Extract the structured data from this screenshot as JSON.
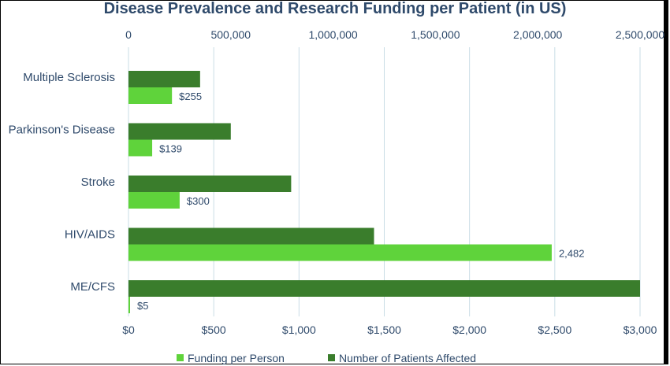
{
  "chart_data": {
    "type": "bar",
    "orientation": "horizontal",
    "title": "Disease Prevalence and Research Funding per Patient (in US)",
    "categories": [
      "Multiple Sclerosis",
      "Parkinson's Disease",
      "Stroke",
      "HIV/AIDS",
      "ME/CFS"
    ],
    "series": [
      {
        "name": "Number of Patients Affected",
        "axis": "top",
        "color": "#3a7d2c",
        "values": [
          350000,
          500000,
          795000,
          1200000,
          2500000
        ]
      },
      {
        "name": "Funding per Person",
        "axis": "bottom",
        "color": "#5fd33b",
        "values": [
          255,
          139,
          300,
          2482,
          5
        ],
        "data_labels": [
          "$255",
          "$139",
          "$300",
          "2,482",
          "$5"
        ]
      }
    ],
    "x_top": {
      "range": [
        0,
        2500000
      ],
      "ticks": [
        0,
        500000,
        1000000,
        1500000,
        2000000,
        2500000
      ],
      "tick_labels": [
        "0",
        "500,000",
        "1,000,000",
        "1,500,000",
        "2,000,000",
        "2,500,000"
      ]
    },
    "x_bottom": {
      "range": [
        0,
        3000
      ],
      "ticks": [
        0,
        500,
        1000,
        1500,
        2000,
        2500,
        3000
      ],
      "tick_labels": [
        "$0",
        "$500",
        "$1,000",
        "$1,500",
        "$2,000",
        "$2,500",
        "$3,000"
      ]
    },
    "grid": true,
    "legend": {
      "position": "bottom",
      "entries": [
        "Funding per Person",
        "Number of Patients Affected"
      ]
    }
  }
}
